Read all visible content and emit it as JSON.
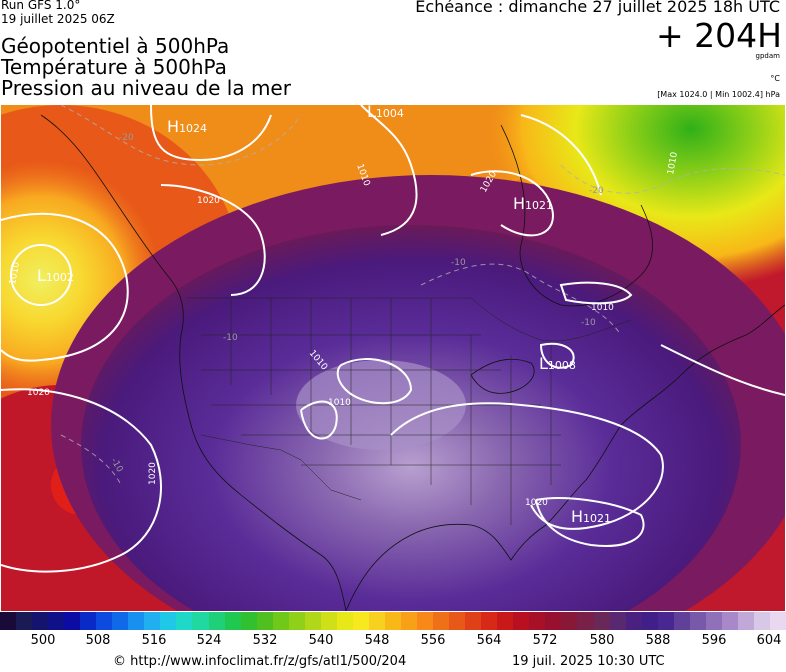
{
  "header": {
    "run_line1": "Run GFS 1.0°",
    "run_line2": "19 juillet 2025 06Z",
    "title_lines": [
      "Géopotentiel à 500hPa",
      "Température à 500hPa",
      "Pression au niveau de la mer"
    ],
    "echeance": "Echéance : dimanche 27 juillet 2025 18h UTC",
    "lead": "+ 204H",
    "unit_gpdam": "gpdam",
    "unit_temp": "°C",
    "pressure_range": "[Max 1024.0 | Min 1002.4] hPa"
  },
  "map": {
    "highs": [
      {
        "letter": "H",
        "value": "1024"
      },
      {
        "letter": "H",
        "value": "1021"
      },
      {
        "letter": "H",
        "value": "1021"
      }
    ],
    "lows": [
      {
        "letter": "L",
        "value": "1002"
      },
      {
        "letter": "L",
        "value": "1004"
      },
      {
        "letter": "L",
        "value": "1008"
      }
    ],
    "isobar_labels": [
      "1020",
      "1020",
      "1020",
      "1020",
      "1010",
      "1010",
      "1010",
      "1010",
      "1010",
      "1020",
      "1010"
    ],
    "temp_labels": [
      "-20",
      "-20",
      "-10",
      "-10",
      "-10",
      "-10"
    ]
  },
  "colorbar": {
    "ticks": [
      "500",
      "508",
      "516",
      "524",
      "532",
      "540",
      "548",
      "556",
      "564",
      "572",
      "580",
      "588",
      "596",
      "604"
    ],
    "colors": [
      "#1a0a3a",
      "#1a1a55",
      "#14146e",
      "#101088",
      "#0c0ca5",
      "#0a2ac8",
      "#0c4ae0",
      "#106ae8",
      "#1890f0",
      "#20b0f0",
      "#20c8e8",
      "#20d8c8",
      "#20d8a0",
      "#20d078",
      "#20c850",
      "#30c030",
      "#50c020",
      "#70c818",
      "#90d018",
      "#b0d818",
      "#d0e018",
      "#e8e818",
      "#f8e820",
      "#f8d020",
      "#f8b818",
      "#f8a018",
      "#f88818",
      "#f07018",
      "#e85818",
      "#e04018",
      "#d82818",
      "#c81818",
      "#b81020",
      "#a81028",
      "#981030",
      "#881838",
      "#782048",
      "#682858",
      "#5a2870",
      "#4a2080",
      "#402088",
      "#482890",
      "#604098",
      "#7858a8",
      "#9070b8",
      "#a888c8",
      "#c0a8d8",
      "#d8c8e8",
      "#ead8f0"
    ]
  },
  "footer": {
    "credit": "© http://www.infoclimat.fr/z/gfs/atl1/500/204",
    "generated": "19 juil. 2025 10:30 UTC"
  }
}
